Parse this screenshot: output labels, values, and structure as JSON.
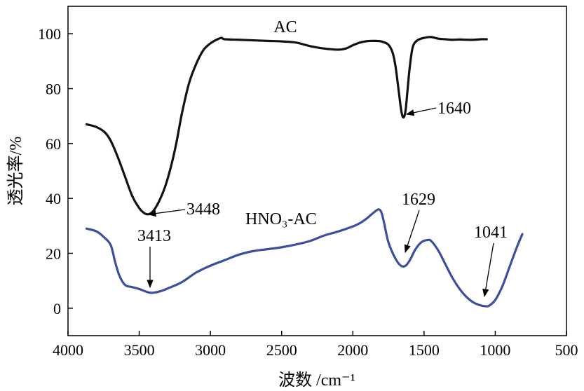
{
  "chart_data": {
    "type": "line",
    "xlabel": "波数 /cm⁻¹",
    "ylabel": "透光率/%",
    "xlim": [
      4000,
      500
    ],
    "ylim": [
      -10,
      110
    ],
    "x_ticks": [
      4000,
      3500,
      3000,
      2500,
      2000,
      1500,
      1000,
      500
    ],
    "y_ticks": [
      0,
      20,
      40,
      60,
      80,
      100
    ],
    "grid": false,
    "series": [
      {
        "name": "AC",
        "color": "#111111",
        "points": [
          [
            3870,
            67
          ],
          [
            3800,
            66
          ],
          [
            3740,
            64
          ],
          [
            3700,
            61
          ],
          [
            3650,
            55
          ],
          [
            3600,
            48
          ],
          [
            3550,
            41
          ],
          [
            3500,
            36.5
          ],
          [
            3460,
            34.5
          ],
          [
            3430,
            34.3
          ],
          [
            3400,
            35.5
          ],
          [
            3360,
            39
          ],
          [
            3320,
            44
          ],
          [
            3280,
            51
          ],
          [
            3240,
            60
          ],
          [
            3200,
            71
          ],
          [
            3150,
            82
          ],
          [
            3100,
            89
          ],
          [
            3050,
            94
          ],
          [
            3000,
            96.5
          ],
          [
            2950,
            98
          ],
          [
            2920,
            98.5
          ],
          [
            2900,
            98
          ],
          [
            2800,
            97.8
          ],
          [
            2700,
            97.6
          ],
          [
            2600,
            97.4
          ],
          [
            2500,
            97.2
          ],
          [
            2400,
            96.8
          ],
          [
            2300,
            95.5
          ],
          [
            2200,
            94.6
          ],
          [
            2100,
            94.2
          ],
          [
            2050,
            94.6
          ],
          [
            2000,
            95.8
          ],
          [
            1950,
            96.8
          ],
          [
            1900,
            97.3
          ],
          [
            1850,
            97.4
          ],
          [
            1800,
            97.2
          ],
          [
            1750,
            96
          ],
          [
            1720,
            93
          ],
          [
            1700,
            88
          ],
          [
            1680,
            80
          ],
          [
            1660,
            72
          ],
          [
            1645,
            69.5
          ],
          [
            1630,
            72
          ],
          [
            1615,
            80
          ],
          [
            1600,
            88
          ],
          [
            1580,
            95
          ],
          [
            1550,
            97.5
          ],
          [
            1500,
            98.5
          ],
          [
            1450,
            98.8
          ],
          [
            1400,
            98.2
          ],
          [
            1350,
            98
          ],
          [
            1300,
            97.8
          ],
          [
            1250,
            97.9
          ],
          [
            1200,
            97.8
          ],
          [
            1150,
            97.8
          ],
          [
            1100,
            98
          ],
          [
            1060,
            98
          ]
        ]
      },
      {
        "name": "HNO₃-AC",
        "color": "#3a4fa0",
        "points": [
          [
            3870,
            29
          ],
          [
            3800,
            28
          ],
          [
            3750,
            26
          ],
          [
            3700,
            23
          ],
          [
            3670,
            17
          ],
          [
            3640,
            12
          ],
          [
            3600,
            8.5
          ],
          [
            3550,
            7.7
          ],
          [
            3500,
            7
          ],
          [
            3450,
            6
          ],
          [
            3413,
            5.6
          ],
          [
            3350,
            6.2
          ],
          [
            3300,
            7.2
          ],
          [
            3200,
            9.5
          ],
          [
            3100,
            13
          ],
          [
            3000,
            15.5
          ],
          [
            2900,
            17.5
          ],
          [
            2800,
            19.5
          ],
          [
            2700,
            20.8
          ],
          [
            2600,
            21.5
          ],
          [
            2500,
            22.2
          ],
          [
            2400,
            23.2
          ],
          [
            2300,
            24.5
          ],
          [
            2200,
            26.5
          ],
          [
            2100,
            28
          ],
          [
            2000,
            29.8
          ],
          [
            1950,
            31
          ],
          [
            1900,
            32.8
          ],
          [
            1850,
            35
          ],
          [
            1820,
            36
          ],
          [
            1800,
            35
          ],
          [
            1780,
            31
          ],
          [
            1750,
            24
          ],
          [
            1700,
            18
          ],
          [
            1660,
            15.4
          ],
          [
            1629,
            15.5
          ],
          [
            1600,
            17.5
          ],
          [
            1560,
            21.5
          ],
          [
            1520,
            24
          ],
          [
            1480,
            24.8
          ],
          [
            1450,
            24.5
          ],
          [
            1400,
            21
          ],
          [
            1350,
            16
          ],
          [
            1300,
            11
          ],
          [
            1250,
            7
          ],
          [
            1200,
            4
          ],
          [
            1150,
            2
          ],
          [
            1100,
            1
          ],
          [
            1060,
            0.7
          ],
          [
            1041,
            1
          ],
          [
            1000,
            3
          ],
          [
            950,
            8
          ],
          [
            900,
            15
          ],
          [
            850,
            22
          ],
          [
            810,
            27
          ]
        ]
      }
    ],
    "annotations": [
      {
        "id": "ac-label",
        "text": "AC"
      },
      {
        "id": "hno3-label",
        "text": "HNO₃-AC"
      },
      {
        "id": "peak-1640",
        "text": "1640",
        "x": 1645,
        "y": 69.5
      },
      {
        "id": "peak-3448",
        "text": "3448",
        "x": 3430,
        "y": 34.3
      },
      {
        "id": "peak-3413",
        "text": "3413",
        "x": 3413,
        "y": 5.6
      },
      {
        "id": "peak-1629",
        "text": "1629",
        "x": 1629,
        "y": 15.5
      },
      {
        "id": "peak-1041",
        "text": "1041",
        "x": 1041,
        "y": 1
      }
    ]
  }
}
